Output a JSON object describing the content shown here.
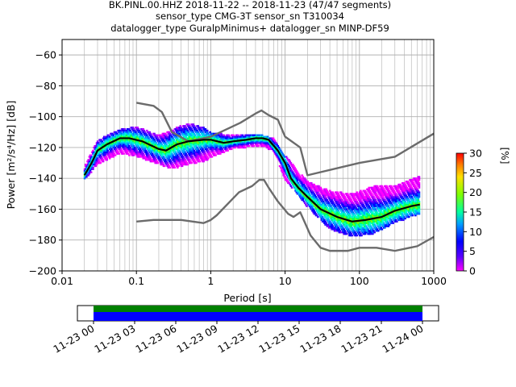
{
  "title_lines": [
    "BK.PINL.00.HHZ   2018-11-22 -- 2018-11-23  (47/47 segments)",
    "sensor_type CMG-3T sensor_sn T310034",
    "datalogger_type GuralpMinimus+ datalogger_sn MINP-DF59"
  ],
  "chart_data": {
    "type": "heatmap",
    "xlabel": "Period [s]",
    "ylabel": "Power [m²/s⁴/Hz] [dB]",
    "xscale": "log",
    "xlim": [
      0.01,
      1000
    ],
    "ylim": [
      -200,
      -50
    ],
    "xticks": [
      {
        "v": 0.01,
        "label": "0.01"
      },
      {
        "v": 0.1,
        "label": "0.1"
      },
      {
        "v": 1,
        "label": "1"
      },
      {
        "v": 10,
        "label": "10"
      },
      {
        "v": 100,
        "label": "100"
      },
      {
        "v": 1000,
        "label": "1000"
      }
    ],
    "yticks": [
      -60,
      -80,
      -100,
      -120,
      -140,
      -160,
      -180,
      -200
    ],
    "grid": true,
    "colorbar": {
      "label": "[%]",
      "min": 0,
      "max": 30,
      "ticks": [
        0,
        5,
        10,
        15,
        20,
        25,
        30
      ]
    },
    "mode_curve": [
      [
        0.02,
        -138
      ],
      [
        0.025,
        -130
      ],
      [
        0.03,
        -122
      ],
      [
        0.04,
        -118
      ],
      [
        0.06,
        -114
      ],
      [
        0.08,
        -114
      ],
      [
        0.12,
        -116
      ],
      [
        0.2,
        -121
      ],
      [
        0.25,
        -122
      ],
      [
        0.35,
        -118
      ],
      [
        0.5,
        -116
      ],
      [
        0.8,
        -115
      ],
      [
        1.0,
        -115
      ],
      [
        1.5,
        -117
      ],
      [
        2.0,
        -116
      ],
      [
        3.0,
        -115
      ],
      [
        4.0,
        -114
      ],
      [
        5.0,
        -114
      ],
      [
        6.0,
        -115
      ],
      [
        8.0,
        -122
      ],
      [
        10.0,
        -130
      ],
      [
        12.0,
        -140
      ],
      [
        15.0,
        -146
      ],
      [
        20.0,
        -152
      ],
      [
        30.0,
        -160
      ],
      [
        50.0,
        -165
      ],
      [
        80.0,
        -168
      ],
      [
        120.0,
        -167
      ],
      [
        200.0,
        -165
      ],
      [
        300.0,
        -161
      ],
      [
        500.0,
        -158
      ],
      [
        650.0,
        -157
      ]
    ],
    "density_band": [
      [
        0.02,
        -140,
        -132
      ],
      [
        0.03,
        -130,
        -115
      ],
      [
        0.06,
        -123,
        -108
      ],
      [
        0.1,
        -125,
        -106
      ],
      [
        0.2,
        -130,
        -112
      ],
      [
        0.3,
        -133,
        -108
      ],
      [
        0.5,
        -130,
        -104
      ],
      [
        0.8,
        -128,
        -107
      ],
      [
        1.0,
        -126,
        -110
      ],
      [
        2.0,
        -120,
        -112
      ],
      [
        5.0,
        -118,
        -112
      ],
      [
        7.0,
        -122,
        -114
      ],
      [
        10.0,
        -140,
        -125
      ],
      [
        15.0,
        -150,
        -135
      ],
      [
        20.0,
        -158,
        -142
      ],
      [
        40.0,
        -172,
        -148
      ],
      [
        80.0,
        -177,
        -150
      ],
      [
        150.0,
        -175,
        -145
      ],
      [
        300.0,
        -168,
        -145
      ],
      [
        650.0,
        -162,
        -138
      ]
    ],
    "nhnm": [
      [
        0.1,
        -91
      ],
      [
        0.17,
        -93
      ],
      [
        0.22,
        -97
      ],
      [
        0.3,
        -110
      ],
      [
        0.5,
        -116
      ],
      [
        0.8,
        -114
      ],
      [
        1.0,
        -113
      ],
      [
        2.5,
        -104
      ],
      [
        4.0,
        -98
      ],
      [
        4.8,
        -96
      ],
      [
        6.0,
        -99
      ],
      [
        8.0,
        -102
      ],
      [
        10.0,
        -113
      ],
      [
        16.0,
        -120
      ],
      [
        20.0,
        -138
      ],
      [
        100.0,
        -130
      ],
      [
        300.0,
        -126
      ],
      [
        1000.0,
        -111
      ]
    ],
    "nlnm": [
      [
        0.1,
        -168
      ],
      [
        0.17,
        -167
      ],
      [
        0.4,
        -167
      ],
      [
        0.8,
        -169
      ],
      [
        1.0,
        -167
      ],
      [
        1.2,
        -164
      ],
      [
        2.4,
        -149
      ],
      [
        3.6,
        -145
      ],
      [
        4.5,
        -141
      ],
      [
        5.2,
        -141
      ],
      [
        6.0,
        -146
      ],
      [
        8.0,
        -155
      ],
      [
        11.0,
        -163
      ],
      [
        13.0,
        -165
      ],
      [
        16.0,
        -162
      ],
      [
        22.0,
        -177
      ],
      [
        30.0,
        -185
      ],
      [
        40.0,
        -187
      ],
      [
        70.0,
        -187
      ],
      [
        100.0,
        -185
      ],
      [
        170.0,
        -185
      ],
      [
        300.0,
        -187
      ],
      [
        600.0,
        -184
      ],
      [
        1000.0,
        -178
      ]
    ]
  },
  "timeline": {
    "ticks": [
      "11-23 00",
      "11-23 03",
      "11-23 06",
      "11-23 09",
      "11-23 12",
      "11-23 15",
      "11-23 18",
      "11-23 21",
      "11-24 00"
    ],
    "colors": {
      "top": "#008000",
      "bottom": "#0000ff"
    }
  }
}
